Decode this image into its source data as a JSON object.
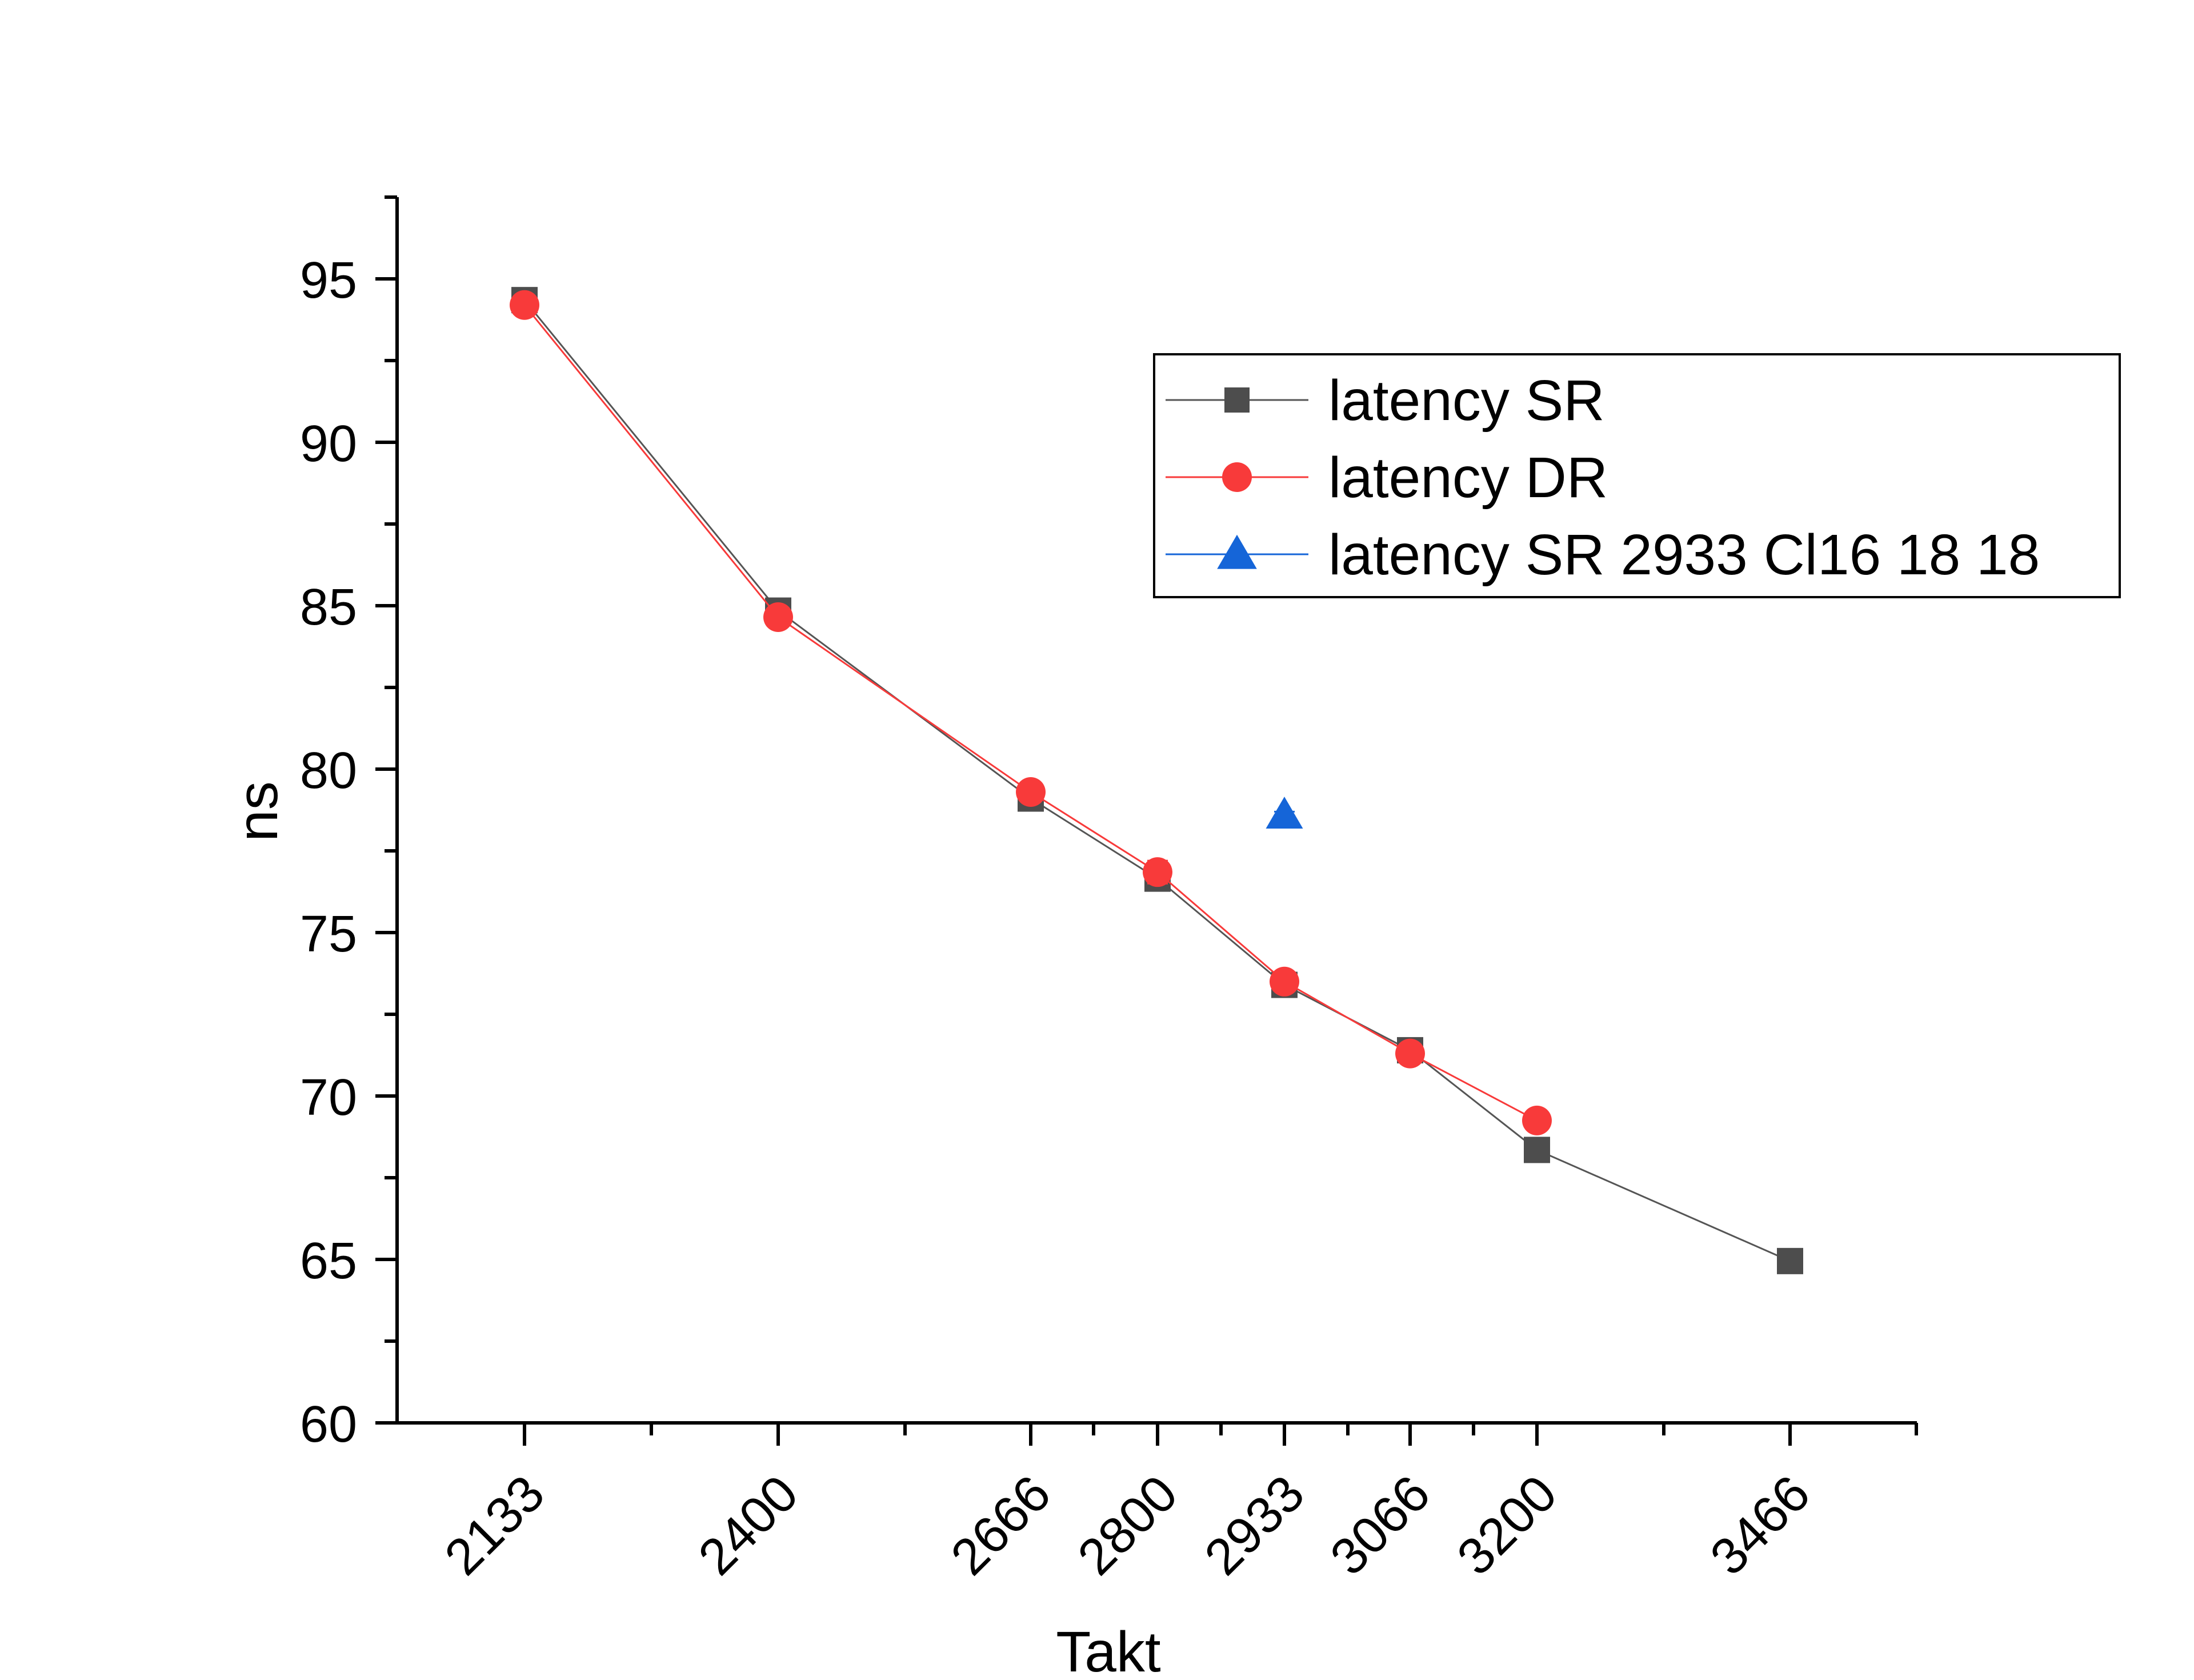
{
  "chart_data": {
    "type": "line",
    "title": "",
    "xlabel": "Takt",
    "ylabel": "ns",
    "x_is_categorical": true,
    "categories": [
      "2133",
      "2400",
      "2666",
      "2800",
      "2933",
      "3066",
      "3200",
      "3466"
    ],
    "ylim": [
      60,
      97.5
    ],
    "yticks": [
      60,
      65,
      70,
      75,
      80,
      85,
      90,
      95
    ],
    "grid": false,
    "legend_position": "top-right",
    "series": [
      {
        "name": "latency SR",
        "marker": "square",
        "color": "#4d4d4d",
        "line_color": "#555555",
        "values": [
          94.35,
          84.85,
          79.1,
          76.65,
          73.4,
          71.4,
          68.35,
          64.95
        ],
        "errors": [
          0.1,
          0.1,
          0.1,
          0.2,
          0.25,
          0.15,
          0.15,
          0.1
        ]
      },
      {
        "name": "latency DR",
        "marker": "circle",
        "color": "#f83a3a",
        "line_color": "#f83a3a",
        "values": [
          94.2,
          84.65,
          79.3,
          76.85,
          73.5,
          71.3,
          69.25,
          null
        ],
        "errors": [
          0.1,
          0.1,
          0.15,
          0.35,
          0.2,
          0.15,
          0.3,
          null
        ]
      },
      {
        "name": "latency SR 2933 Cl16 18 18",
        "marker": "triangle",
        "color": "#1565d8",
        "line_color": "#1565d8",
        "values": [
          null,
          null,
          null,
          null,
          78.6,
          null,
          null,
          null
        ],
        "errors": [
          null,
          null,
          null,
          null,
          0.1,
          null,
          null,
          null
        ]
      }
    ]
  }
}
